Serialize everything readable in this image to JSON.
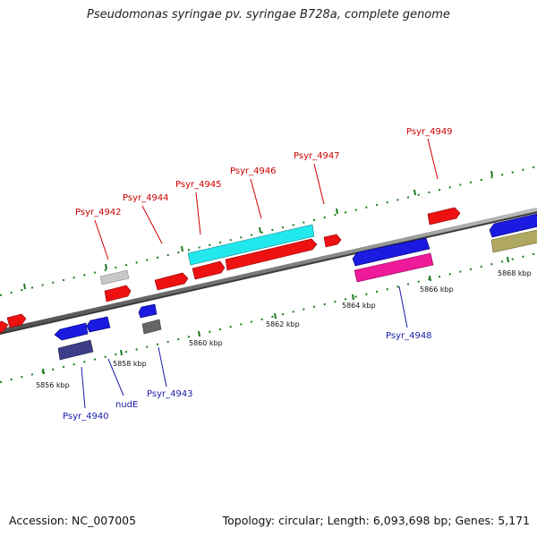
{
  "title": "Pseudomonas syringae pv. syringae B728a, complete genome",
  "footer": {
    "accession": "Accession: NC_007005",
    "topology": "Topology: circular; Length: 6,093,698 bp; Genes: 5,171"
  },
  "colors": {
    "backbone": "#808080",
    "tick": "#1a7a1a",
    "forward_label": "#cc0000",
    "reverse_label": "#1a1aaa"
  },
  "scale_labels": [
    "5856 kbp",
    "5858 kbp",
    "5860 kbp",
    "5862 kbp",
    "5864 kbp",
    "5866 kbp",
    "5868 kbp"
  ],
  "gene_labels": {
    "forward": [
      "Psyr_4942",
      "Psyr_4944",
      "Psyr_4945",
      "Psyr_4946",
      "Psyr_4947",
      "Psyr_4949"
    ],
    "reverse": [
      "Psyr_4940",
      "nudE",
      "Psyr_4943",
      "Psyr_4948"
    ]
  },
  "feature_colors": {
    "forward_cds": "#ee1111",
    "reverse_cds": "#1a1ae0",
    "rna_light": "#c8c8c8",
    "misc_cyan": "#22e8ee",
    "misc_pink": "#ee1a99",
    "misc_navy": "#3c3c88",
    "misc_gray": "#666666",
    "misc_olive": "#b0a860"
  }
}
